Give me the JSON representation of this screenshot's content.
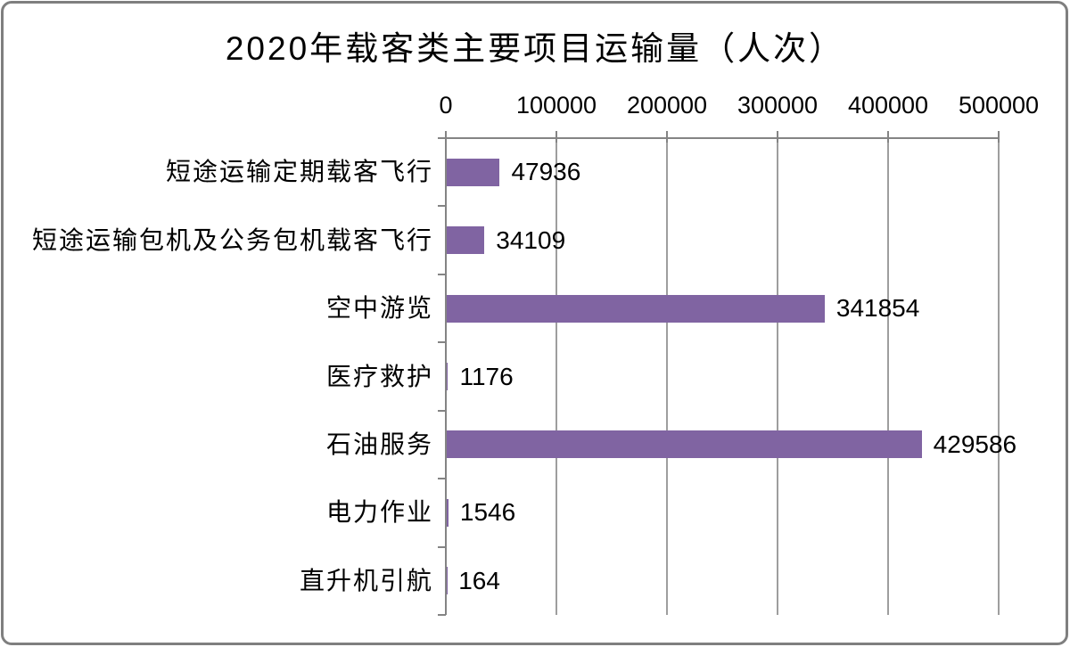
{
  "title": "2020年载客类主要项目运输量（人次）",
  "colors": {
    "bar": "#8064A2",
    "gridline": "#9e9e9e",
    "axis": "#848484",
    "text": "#000000",
    "frame_border": "#7f7f7f",
    "background": "#ffffff"
  },
  "chart_data": {
    "type": "bar",
    "orientation": "horizontal",
    "title": "2020年载客类主要项目运输量（人次）",
    "categories": [
      "短途运输定期载客飞行",
      "短途运输包机及公务包机载客飞行",
      "空中游览",
      "医疗救护",
      "石油服务",
      "电力作业",
      "直升机引航"
    ],
    "values": [
      47936,
      34109,
      341854,
      1176,
      429586,
      1546,
      164
    ],
    "data_labels": [
      "47936",
      "34109",
      "341854",
      "1176",
      "429586",
      "1546",
      "164"
    ],
    "value_axis": {
      "position": "top",
      "min": 0,
      "max": 500000,
      "tick_interval": 100000,
      "tick_labels": [
        "0",
        "100000",
        "200000",
        "300000",
        "400000",
        "500000"
      ]
    },
    "grid": true,
    "legend": false,
    "bar_color": "#8064A2"
  }
}
